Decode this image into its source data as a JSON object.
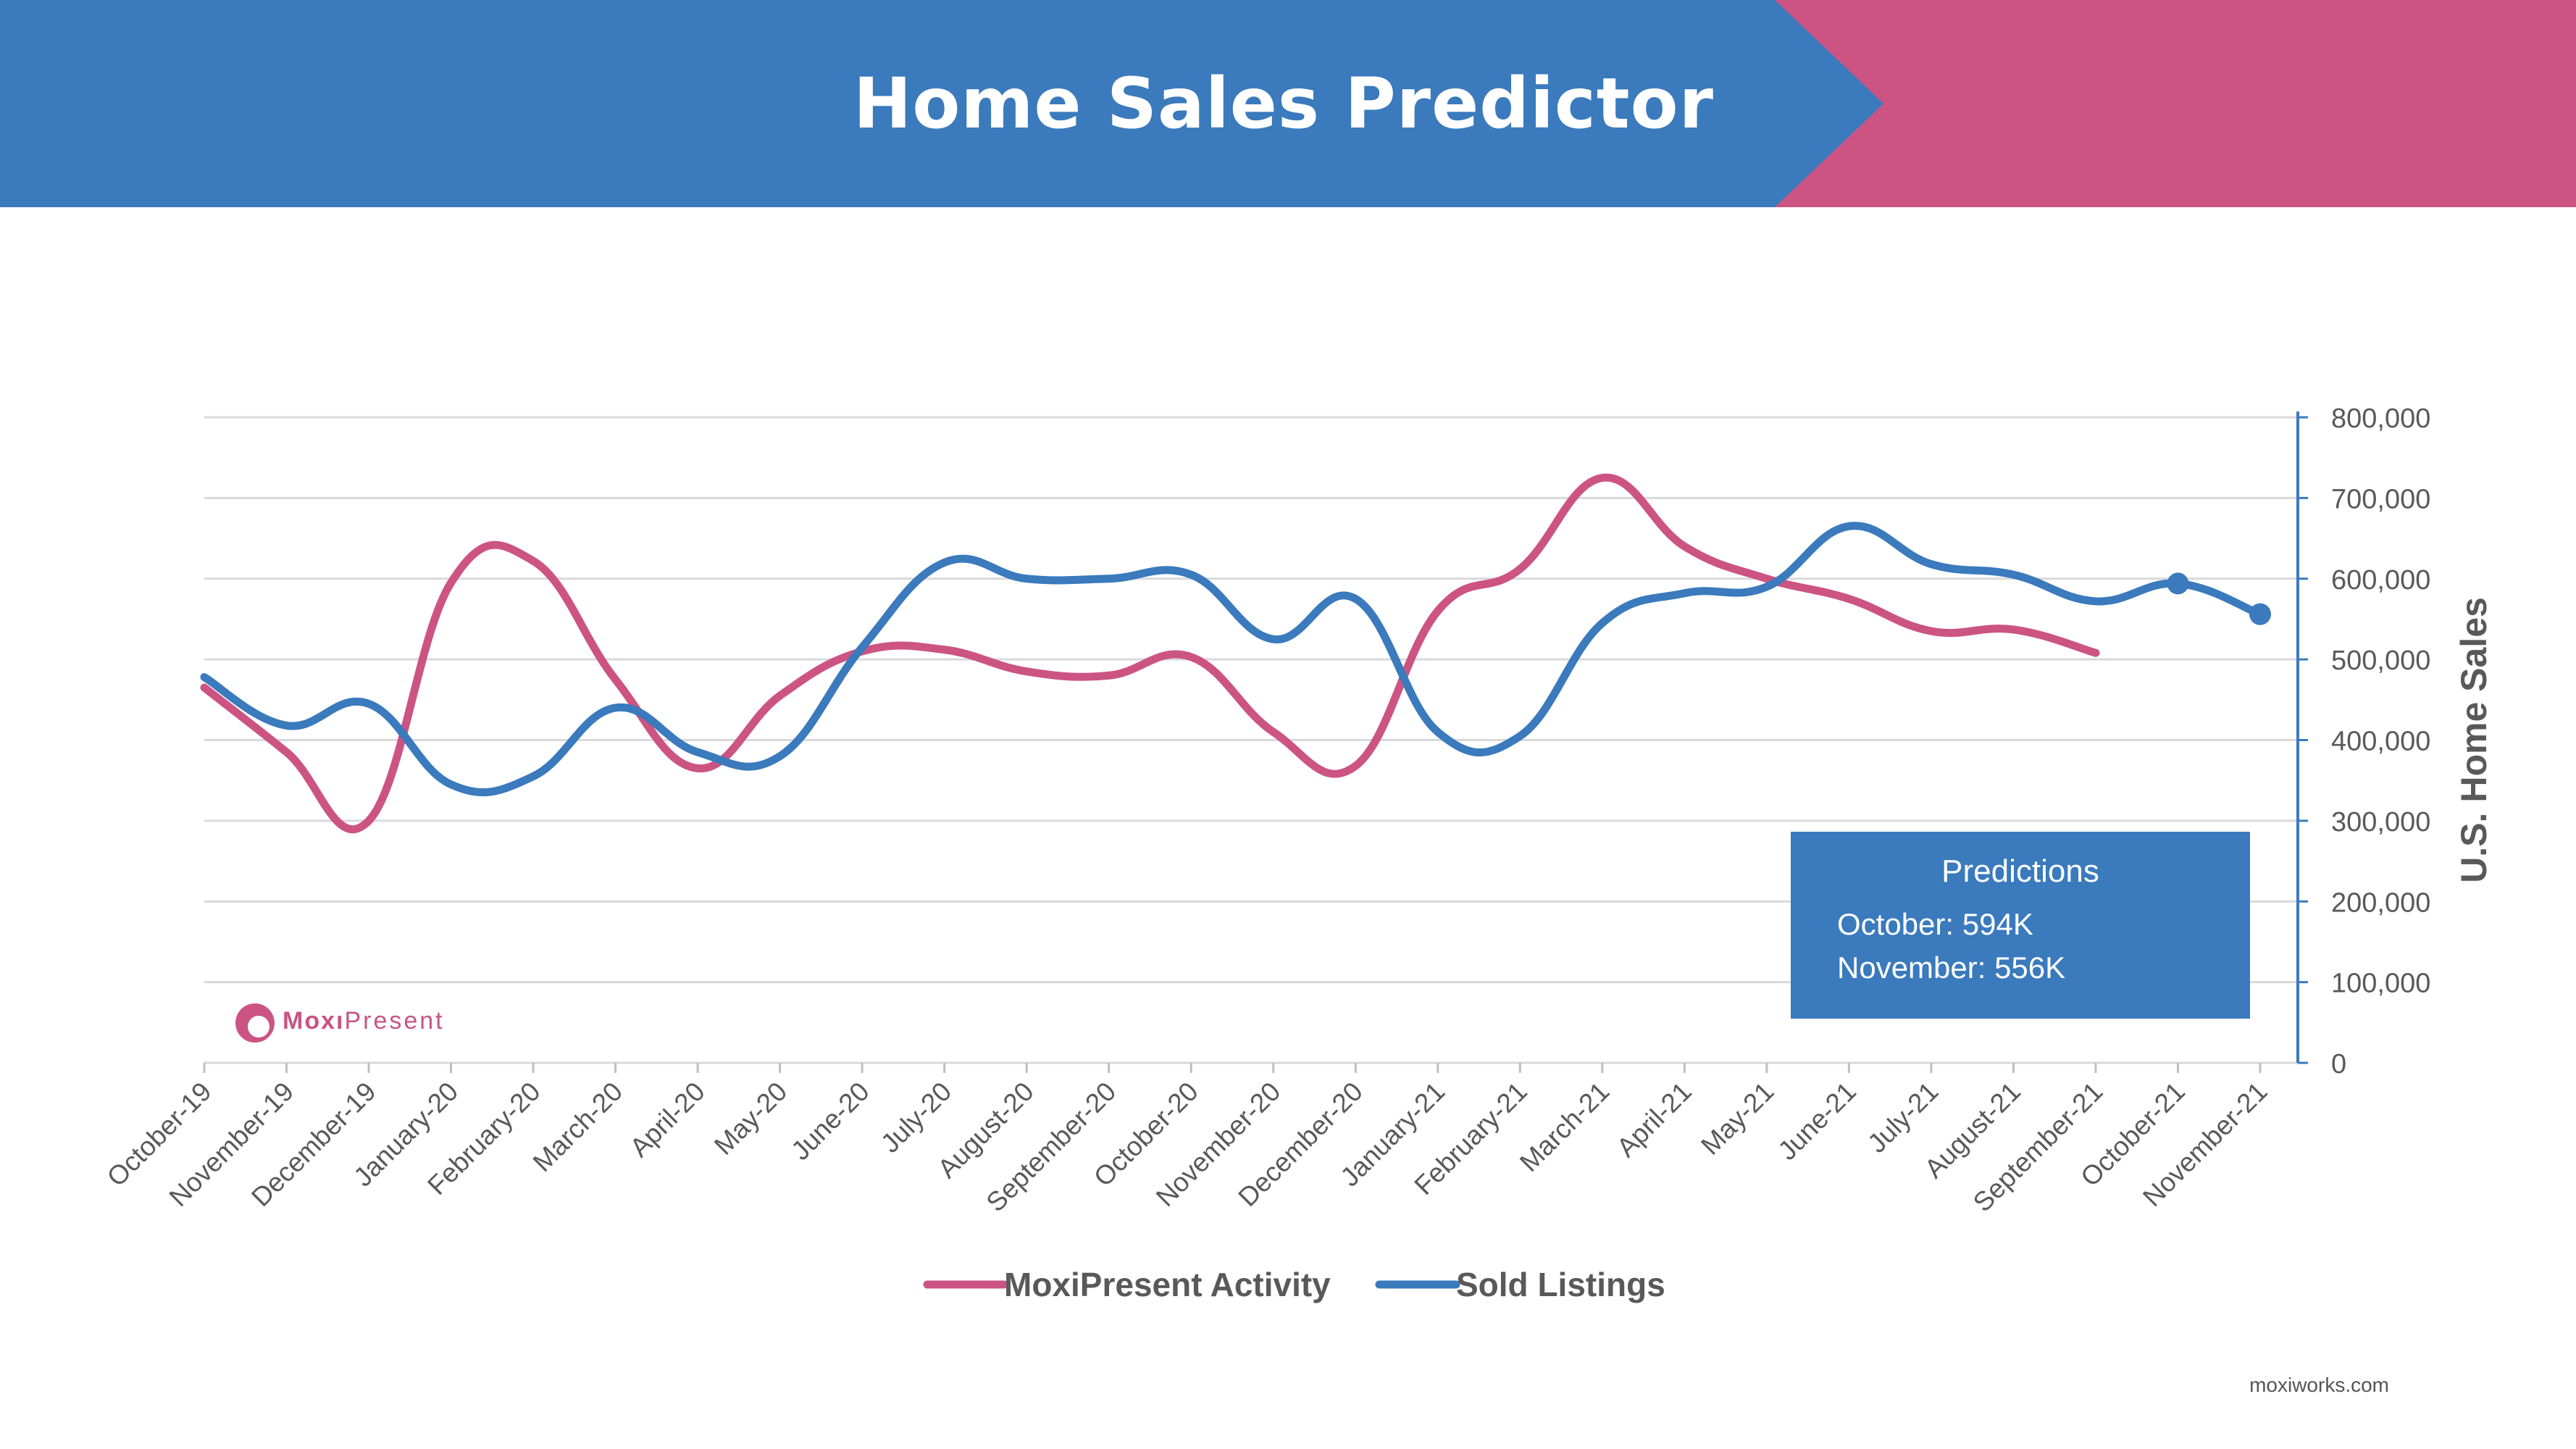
{
  "header": {
    "title": "Home Sales Predictor"
  },
  "footer": {
    "site": "moxiworks.com"
  },
  "logo": {
    "bold_part": "Moxı",
    "regular_part": "Present"
  },
  "predictions": {
    "title": "Predictions",
    "lines": [
      "October: 594K",
      "November: 556K"
    ]
  },
  "colors": {
    "blue": "#3a7abd",
    "pink": "#cc5482",
    "grid": "#d9d9d9",
    "axis_text": "#595959"
  },
  "chart_data": {
    "type": "line",
    "categories": [
      "October-19",
      "November-19",
      "December-19",
      "January-20",
      "February-20",
      "March-20",
      "April-20",
      "May-20",
      "June-20",
      "July-20",
      "August-20",
      "September-20",
      "October-20",
      "November-20",
      "December-20",
      "January-21",
      "February-21",
      "March-21",
      "April-21",
      "May-21",
      "June-21",
      "July-21",
      "August-21",
      "September-21",
      "October-21",
      "November-21"
    ],
    "series": [
      {
        "name": "MoxiPresent Activity",
        "color": "#cc5482",
        "values": [
          465000,
          385000,
          300000,
          595000,
          622000,
          475000,
          365000,
          455000,
          510000,
          512000,
          485000,
          480000,
          503000,
          410000,
          368000,
          560000,
          612000,
          725000,
          640000,
          600000,
          575000,
          535000,
          537000,
          508000,
          null,
          null
        ]
      },
      {
        "name": "Sold Listings",
        "color": "#3a7abd",
        "values": [
          478000,
          418000,
          445000,
          345000,
          355000,
          440000,
          385000,
          380000,
          515000,
          620000,
          600000,
          600000,
          605000,
          525000,
          575000,
          410000,
          405000,
          545000,
          582000,
          590000,
          665000,
          618000,
          605000,
          572000,
          594000,
          556000
        ],
        "markers_at": [
          24,
          25
        ]
      }
    ],
    "ylim": [
      0,
      800000
    ],
    "yticks": [
      "0",
      "100,000",
      "200,000",
      "300,000",
      "400,000",
      "500,000",
      "600,000",
      "700,000",
      "800,000"
    ],
    "ylabel": "U.S. Home Sales",
    "xlabel": "",
    "grid": true,
    "legend": "bottom"
  }
}
